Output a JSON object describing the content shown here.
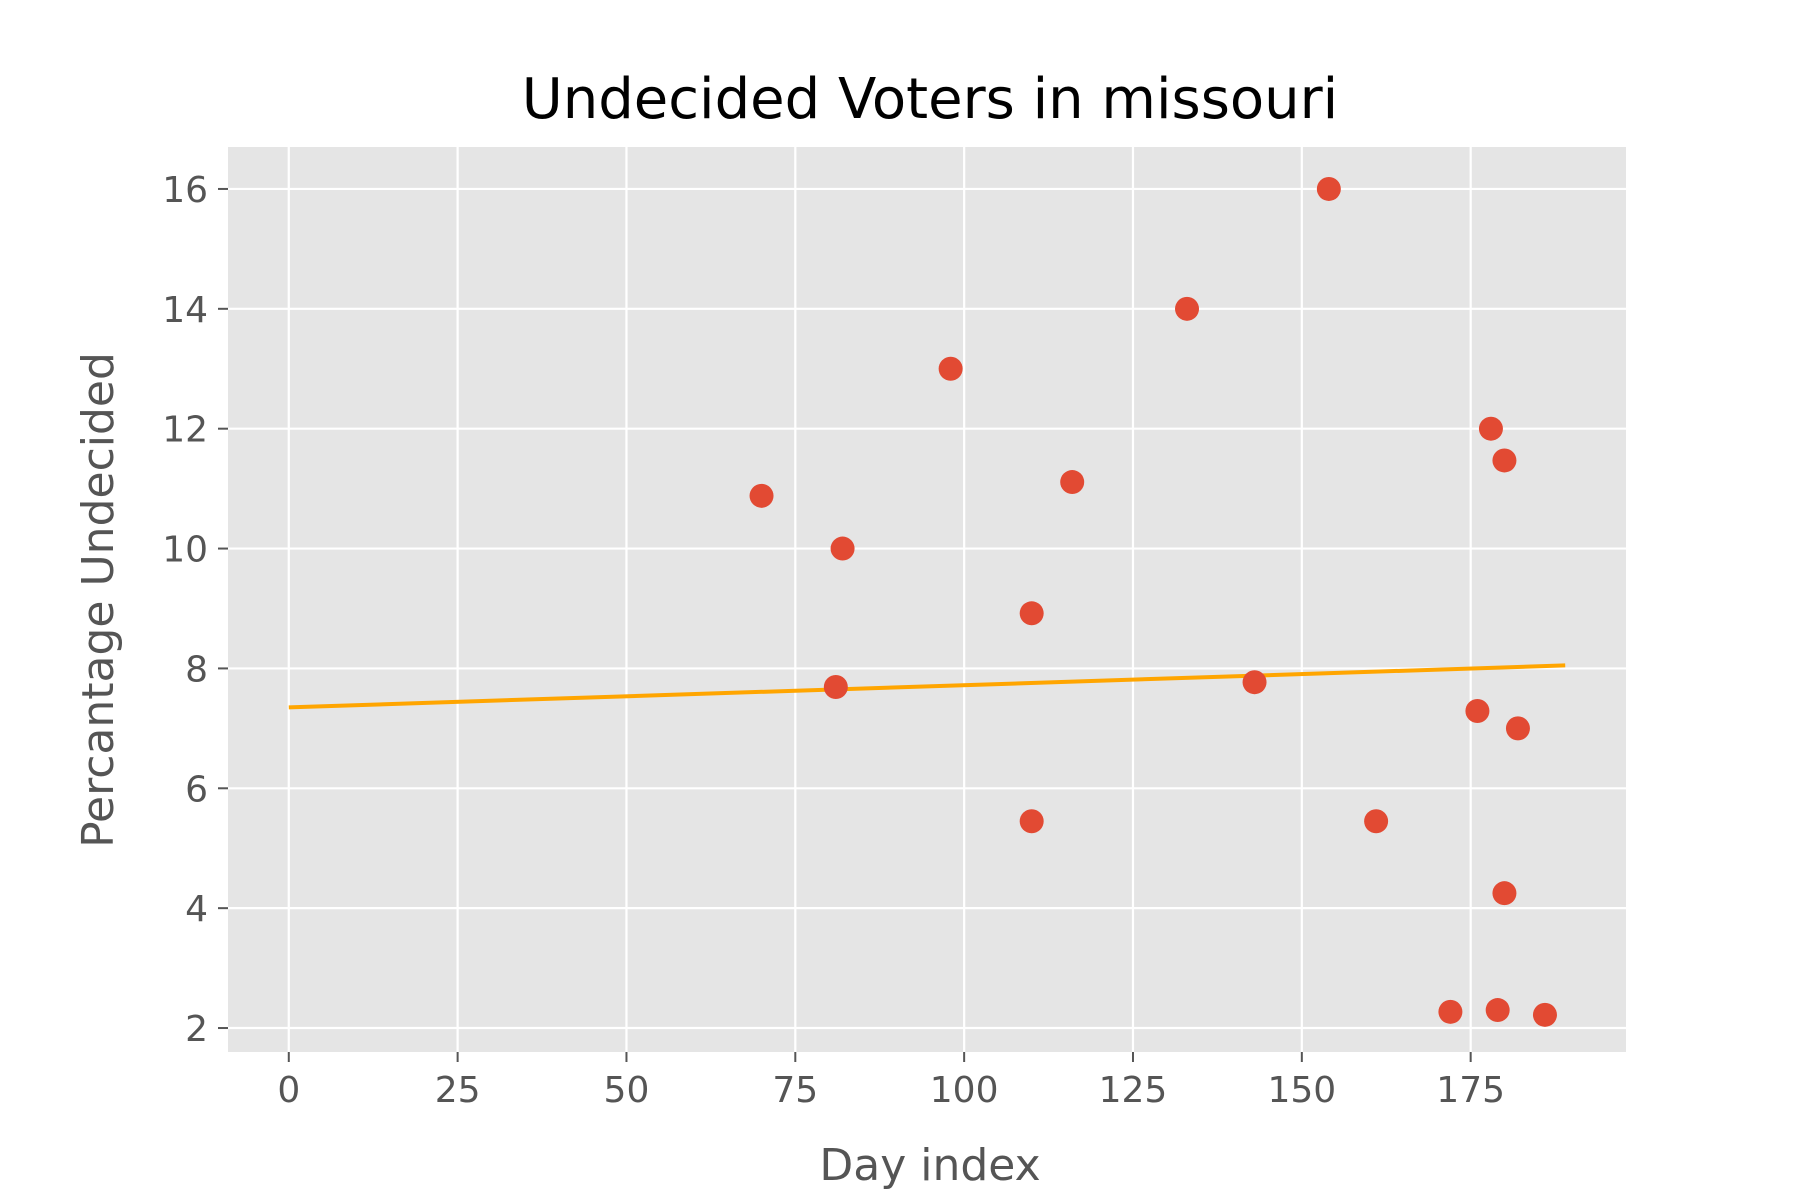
{
  "chart_data": {
    "type": "scatter",
    "title": "Undecided Voters in missouri",
    "xlabel": "Day index",
    "ylabel": "Percantage Undecided",
    "xlim": [
      -9,
      198
    ],
    "ylim": [
      1.6,
      16.7
    ],
    "xticks": [
      0,
      25,
      50,
      75,
      100,
      125,
      150,
      175
    ],
    "yticks": [
      2,
      4,
      6,
      8,
      10,
      12,
      14,
      16
    ],
    "grid": true,
    "colors": {
      "background": "#e5e5e5",
      "grid": "#ffffff",
      "points": "#e24a33",
      "trend": "#ffa500"
    },
    "series": [
      {
        "type": "scatter",
        "points": [
          {
            "x": 70,
            "y": 10.88
          },
          {
            "x": 81,
            "y": 7.69
          },
          {
            "x": 82,
            "y": 10.0
          },
          {
            "x": 98,
            "y": 13.0
          },
          {
            "x": 110,
            "y": 8.92
          },
          {
            "x": 110,
            "y": 5.45
          },
          {
            "x": 116,
            "y": 11.11
          },
          {
            "x": 133,
            "y": 14.0
          },
          {
            "x": 143,
            "y": 7.77
          },
          {
            "x": 154,
            "y": 16.0
          },
          {
            "x": 161,
            "y": 5.45
          },
          {
            "x": 172,
            "y": 2.27
          },
          {
            "x": 176,
            "y": 7.29
          },
          {
            "x": 178,
            "y": 12.0
          },
          {
            "x": 179,
            "y": 2.3
          },
          {
            "x": 180,
            "y": 11.47
          },
          {
            "x": 180,
            "y": 4.25
          },
          {
            "x": 182,
            "y": 7.0
          },
          {
            "x": 186,
            "y": 2.22
          }
        ]
      },
      {
        "type": "line",
        "points": [
          {
            "x": 0,
            "y": 7.35
          },
          {
            "x": 189,
            "y": 8.05
          }
        ]
      }
    ]
  }
}
